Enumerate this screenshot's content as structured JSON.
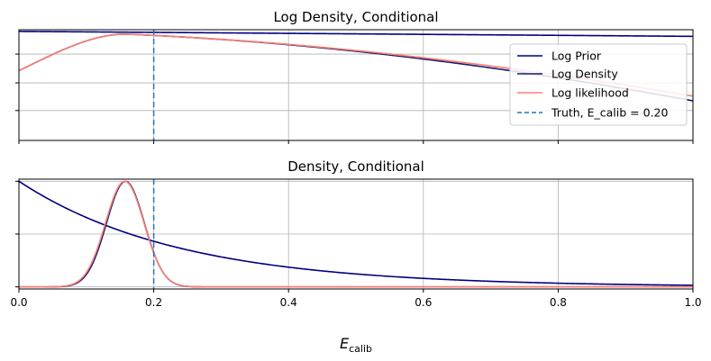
{
  "chart_data": [
    {
      "type": "line",
      "title": "Log Density, Conditional",
      "xlim": [
        0,
        1
      ],
      "ylim": [
        0,
        1
      ],
      "x_ticks": [
        0,
        0.2,
        0.4,
        0.6,
        0.8,
        1.0
      ],
      "y_ticks": [
        0.27,
        0.52,
        0.78
      ],
      "show_x_tick_labels": false,
      "show_y_tick_labels": false,
      "grid": true,
      "legend_position": "right",
      "legend": [
        {
          "label": "Log Prior",
          "color": "#00007f",
          "style": "solid"
        },
        {
          "label": "Log Density",
          "color": "#191970",
          "style": "solid"
        },
        {
          "label": "Log likelihood",
          "color": "#fa8072",
          "style": "solid"
        },
        {
          "label": "Truth, E_calib = 0.20",
          "color": "#1f77b4",
          "style": "dashed"
        }
      ],
      "vline": {
        "x": 0.2,
        "color": "#1f77b4"
      },
      "series": [
        {
          "color": "#00007f",
          "kind": "log_prior"
        },
        {
          "color": "#191970",
          "kind": "log_density"
        },
        {
          "color": "#fa8072",
          "kind": "log_likelihood"
        }
      ]
    },
    {
      "type": "line",
      "title": "Density, Conditional",
      "xlim": [
        0,
        1
      ],
      "ylim": [
        -0.02,
        1.02
      ],
      "x_ticks": [
        0,
        0.2,
        0.4,
        0.6,
        0.8,
        1.0
      ],
      "x_tick_labels": [
        "0.0",
        "0.2",
        "0.4",
        "0.6",
        "0.8",
        "1.0"
      ],
      "y_ticks": [
        0,
        0.5,
        1.0
      ],
      "show_y_tick_labels": false,
      "grid": true,
      "vline": {
        "x": 0.2,
        "color": "#1f77b4"
      },
      "series": [
        {
          "color": "#00007f",
          "kind": "prior"
        },
        {
          "color": "#191970",
          "kind": "density"
        },
        {
          "color": "#fa8072",
          "kind": "likelihood"
        }
      ]
    }
  ],
  "xlabel": {
    "main": "E",
    "sub": "calib"
  }
}
